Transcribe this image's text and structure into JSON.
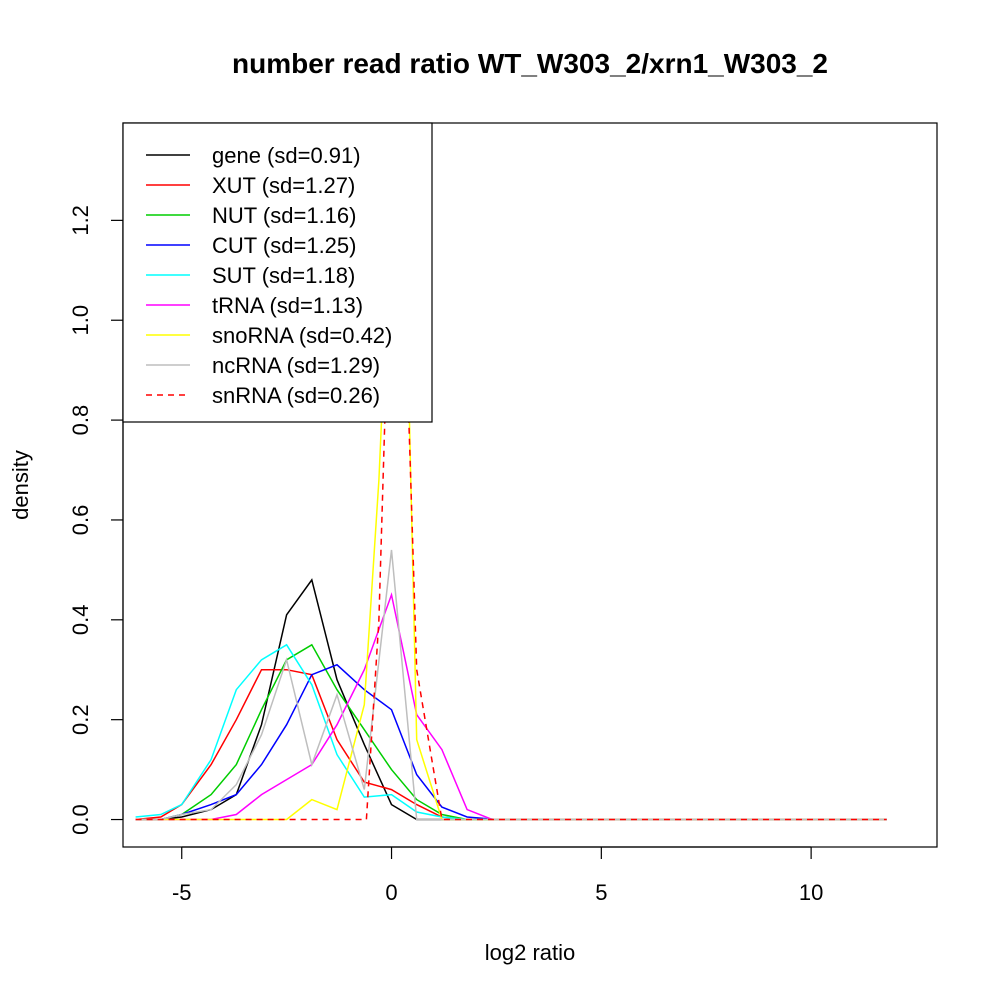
{
  "chart_data": {
    "type": "line",
    "title": "number read ratio WT_W303_2/xrn1_W303_2",
    "xlabel": "log2 ratio",
    "ylabel": "density",
    "xlim": [
      -6.4,
      13.0
    ],
    "ylim": [
      -0.055,
      1.395
    ],
    "x_ticks": [
      -5,
      0,
      5,
      10
    ],
    "y_ticks": [
      0.0,
      0.2,
      0.4,
      0.6,
      0.8,
      1.0,
      1.2
    ],
    "x_tick_labels": [
      "-5",
      "0",
      "5",
      "10"
    ],
    "y_tick_labels": [
      "0.0",
      "0.2",
      "0.4",
      "0.6",
      "0.8",
      "1.0",
      "1.2"
    ],
    "legend_position": "top-left",
    "grid": false,
    "series": [
      {
        "name": "gene (sd=0.91)",
        "color": "#000000",
        "dash": "solid",
        "points": [
          [
            -6.1,
            0
          ],
          [
            -5.5,
            0
          ],
          [
            -5.0,
            0.005
          ],
          [
            -4.3,
            0.02
          ],
          [
            -3.7,
            0.05
          ],
          [
            -3.1,
            0.19
          ],
          [
            -2.5,
            0.41
          ],
          [
            -1.9,
            0.48
          ],
          [
            -1.3,
            0.28
          ],
          [
            -0.65,
            0.15
          ],
          [
            0.0,
            0.03
          ],
          [
            0.6,
            0.0
          ],
          [
            1.2,
            0.0
          ],
          [
            1.8,
            0.0
          ],
          [
            2.5,
            0.0
          ],
          [
            11.8,
            0.0
          ]
        ]
      },
      {
        "name": "XUT (sd=1.27)",
        "color": "#ff0000",
        "dash": "solid",
        "points": [
          [
            -6.1,
            0
          ],
          [
            -5.5,
            0.005
          ],
          [
            -5.0,
            0.03
          ],
          [
            -4.3,
            0.11
          ],
          [
            -3.7,
            0.2
          ],
          [
            -3.1,
            0.3
          ],
          [
            -2.5,
            0.3
          ],
          [
            -1.9,
            0.29
          ],
          [
            -1.3,
            0.16
          ],
          [
            -0.65,
            0.075
          ],
          [
            0.0,
            0.06
          ],
          [
            0.6,
            0.03
          ],
          [
            1.2,
            0.005
          ],
          [
            1.8,
            0.0
          ],
          [
            2.5,
            0.0
          ],
          [
            11.8,
            0.0
          ]
        ]
      },
      {
        "name": "NUT (sd=1.16)",
        "color": "#00cd00",
        "dash": "solid",
        "points": [
          [
            -6.1,
            0
          ],
          [
            -5.5,
            0
          ],
          [
            -5.0,
            0.01
          ],
          [
            -4.3,
            0.05
          ],
          [
            -3.7,
            0.11
          ],
          [
            -3.1,
            0.22
          ],
          [
            -2.5,
            0.32
          ],
          [
            -1.9,
            0.35
          ],
          [
            -1.3,
            0.26
          ],
          [
            -0.65,
            0.18
          ],
          [
            0.0,
            0.1
          ],
          [
            0.6,
            0.04
          ],
          [
            1.2,
            0.01
          ],
          [
            1.8,
            0.0
          ],
          [
            2.5,
            0.0
          ],
          [
            11.8,
            0.0
          ]
        ]
      },
      {
        "name": "CUT (sd=1.25)",
        "color": "#0000ff",
        "dash": "solid",
        "points": [
          [
            -6.1,
            0
          ],
          [
            -5.5,
            0
          ],
          [
            -5.0,
            0.01
          ],
          [
            -4.3,
            0.03
          ],
          [
            -3.7,
            0.05
          ],
          [
            -3.1,
            0.11
          ],
          [
            -2.5,
            0.19
          ],
          [
            -1.9,
            0.29
          ],
          [
            -1.3,
            0.31
          ],
          [
            -0.65,
            0.26
          ],
          [
            0.0,
            0.22
          ],
          [
            0.6,
            0.09
          ],
          [
            1.2,
            0.025
          ],
          [
            1.8,
            0.005
          ],
          [
            2.5,
            0.0
          ],
          [
            11.8,
            0.0
          ]
        ]
      },
      {
        "name": "SUT (sd=1.18)",
        "color": "#00ffff",
        "dash": "solid",
        "points": [
          [
            -6.1,
            0.005
          ],
          [
            -5.5,
            0.01
          ],
          [
            -5.0,
            0.03
          ],
          [
            -4.3,
            0.12
          ],
          [
            -3.7,
            0.26
          ],
          [
            -3.1,
            0.32
          ],
          [
            -2.5,
            0.35
          ],
          [
            -1.9,
            0.27
          ],
          [
            -1.3,
            0.13
          ],
          [
            -0.65,
            0.045
          ],
          [
            0.0,
            0.05
          ],
          [
            0.6,
            0.015
          ],
          [
            1.2,
            0.005
          ],
          [
            1.8,
            0.0
          ],
          [
            2.5,
            0.0
          ],
          [
            11.8,
            0.0
          ]
        ]
      },
      {
        "name": "tRNA (sd=1.13)",
        "color": "#ff00ff",
        "dash": "solid",
        "points": [
          [
            -6.1,
            0
          ],
          [
            -5.5,
            0
          ],
          [
            -5.0,
            0
          ],
          [
            -4.3,
            0.0
          ],
          [
            -3.7,
            0.01
          ],
          [
            -3.1,
            0.05
          ],
          [
            -2.5,
            0.08
          ],
          [
            -1.9,
            0.11
          ],
          [
            -1.3,
            0.19
          ],
          [
            -0.65,
            0.3
          ],
          [
            0.0,
            0.45
          ],
          [
            0.6,
            0.21
          ],
          [
            1.2,
            0.14
          ],
          [
            1.8,
            0.02
          ],
          [
            2.4,
            0.0
          ],
          [
            11.8,
            0.0
          ]
        ]
      },
      {
        "name": "snoRNA (sd=0.42)",
        "color": "#ffff00",
        "dash": "solid",
        "points": [
          [
            -6.1,
            0
          ],
          [
            -2.5,
            0
          ],
          [
            -1.9,
            0.04
          ],
          [
            -1.3,
            0.02
          ],
          [
            -0.65,
            0.23
          ],
          [
            -0.3,
            0.68
          ],
          [
            0.0,
            1.25
          ],
          [
            0.4,
            0.9
          ],
          [
            0.6,
            0.16
          ],
          [
            1.2,
            0.0
          ],
          [
            11.8,
            0.0
          ]
        ]
      },
      {
        "name": "ncRNA (sd=1.29)",
        "color": "#bebebe",
        "dash": "solid",
        "points": [
          [
            -6.1,
            0
          ],
          [
            -5.5,
            0
          ],
          [
            -5.0,
            0.01
          ],
          [
            -4.3,
            0.02
          ],
          [
            -3.7,
            0.07
          ],
          [
            -3.1,
            0.17
          ],
          [
            -2.5,
            0.32
          ],
          [
            -1.9,
            0.11
          ],
          [
            -1.3,
            0.25
          ],
          [
            -0.65,
            0.06
          ],
          [
            0.0,
            0.54
          ],
          [
            0.6,
            0.0
          ],
          [
            1.2,
            0.0
          ],
          [
            1.8,
            0.0
          ],
          [
            11.8,
            0.0
          ]
        ]
      },
      {
        "name": "snRNA (sd=0.26)",
        "color": "#ff0000",
        "dash": "dashed",
        "points": [
          [
            -6.1,
            0
          ],
          [
            -0.6,
            0
          ],
          [
            -0.3,
            0.4
          ],
          [
            0.0,
            1.25
          ],
          [
            0.3,
            1.1
          ],
          [
            0.6,
            0.3
          ],
          [
            1.2,
            0.0
          ],
          [
            11.8,
            0.0
          ]
        ]
      }
    ]
  }
}
